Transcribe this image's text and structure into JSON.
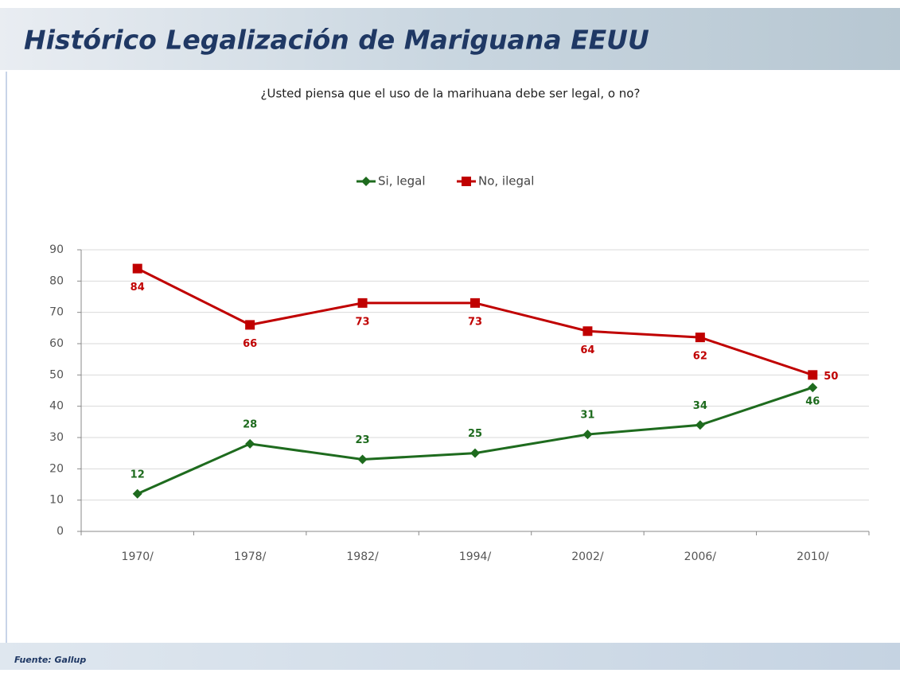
{
  "header": {
    "title": "Histórico Legalización de Mariguana EEUU"
  },
  "chart_data": {
    "type": "line",
    "title": "¿Usted piensa que el uso de la marihuana debe ser legal, o no?",
    "categories": [
      "1970/",
      "1978/",
      "1982/",
      "1994/",
      "2002/",
      "2006/",
      "2010/"
    ],
    "series": [
      {
        "name": "Si, legal",
        "color": "#1e6b1e",
        "marker": "diamond",
        "values": [
          12,
          28,
          23,
          25,
          31,
          34,
          46
        ]
      },
      {
        "name": "No, ilegal",
        "color": "#c00000",
        "marker": "square",
        "values": [
          84,
          66,
          73,
          73,
          64,
          62,
          50
        ]
      }
    ],
    "ylim": [
      0,
      90
    ],
    "yticks": [
      0,
      10,
      20,
      30,
      40,
      50,
      60,
      70,
      80,
      90
    ],
    "grid": true,
    "legend": "top"
  },
  "footer": {
    "source": "Fuente: Gallup"
  }
}
